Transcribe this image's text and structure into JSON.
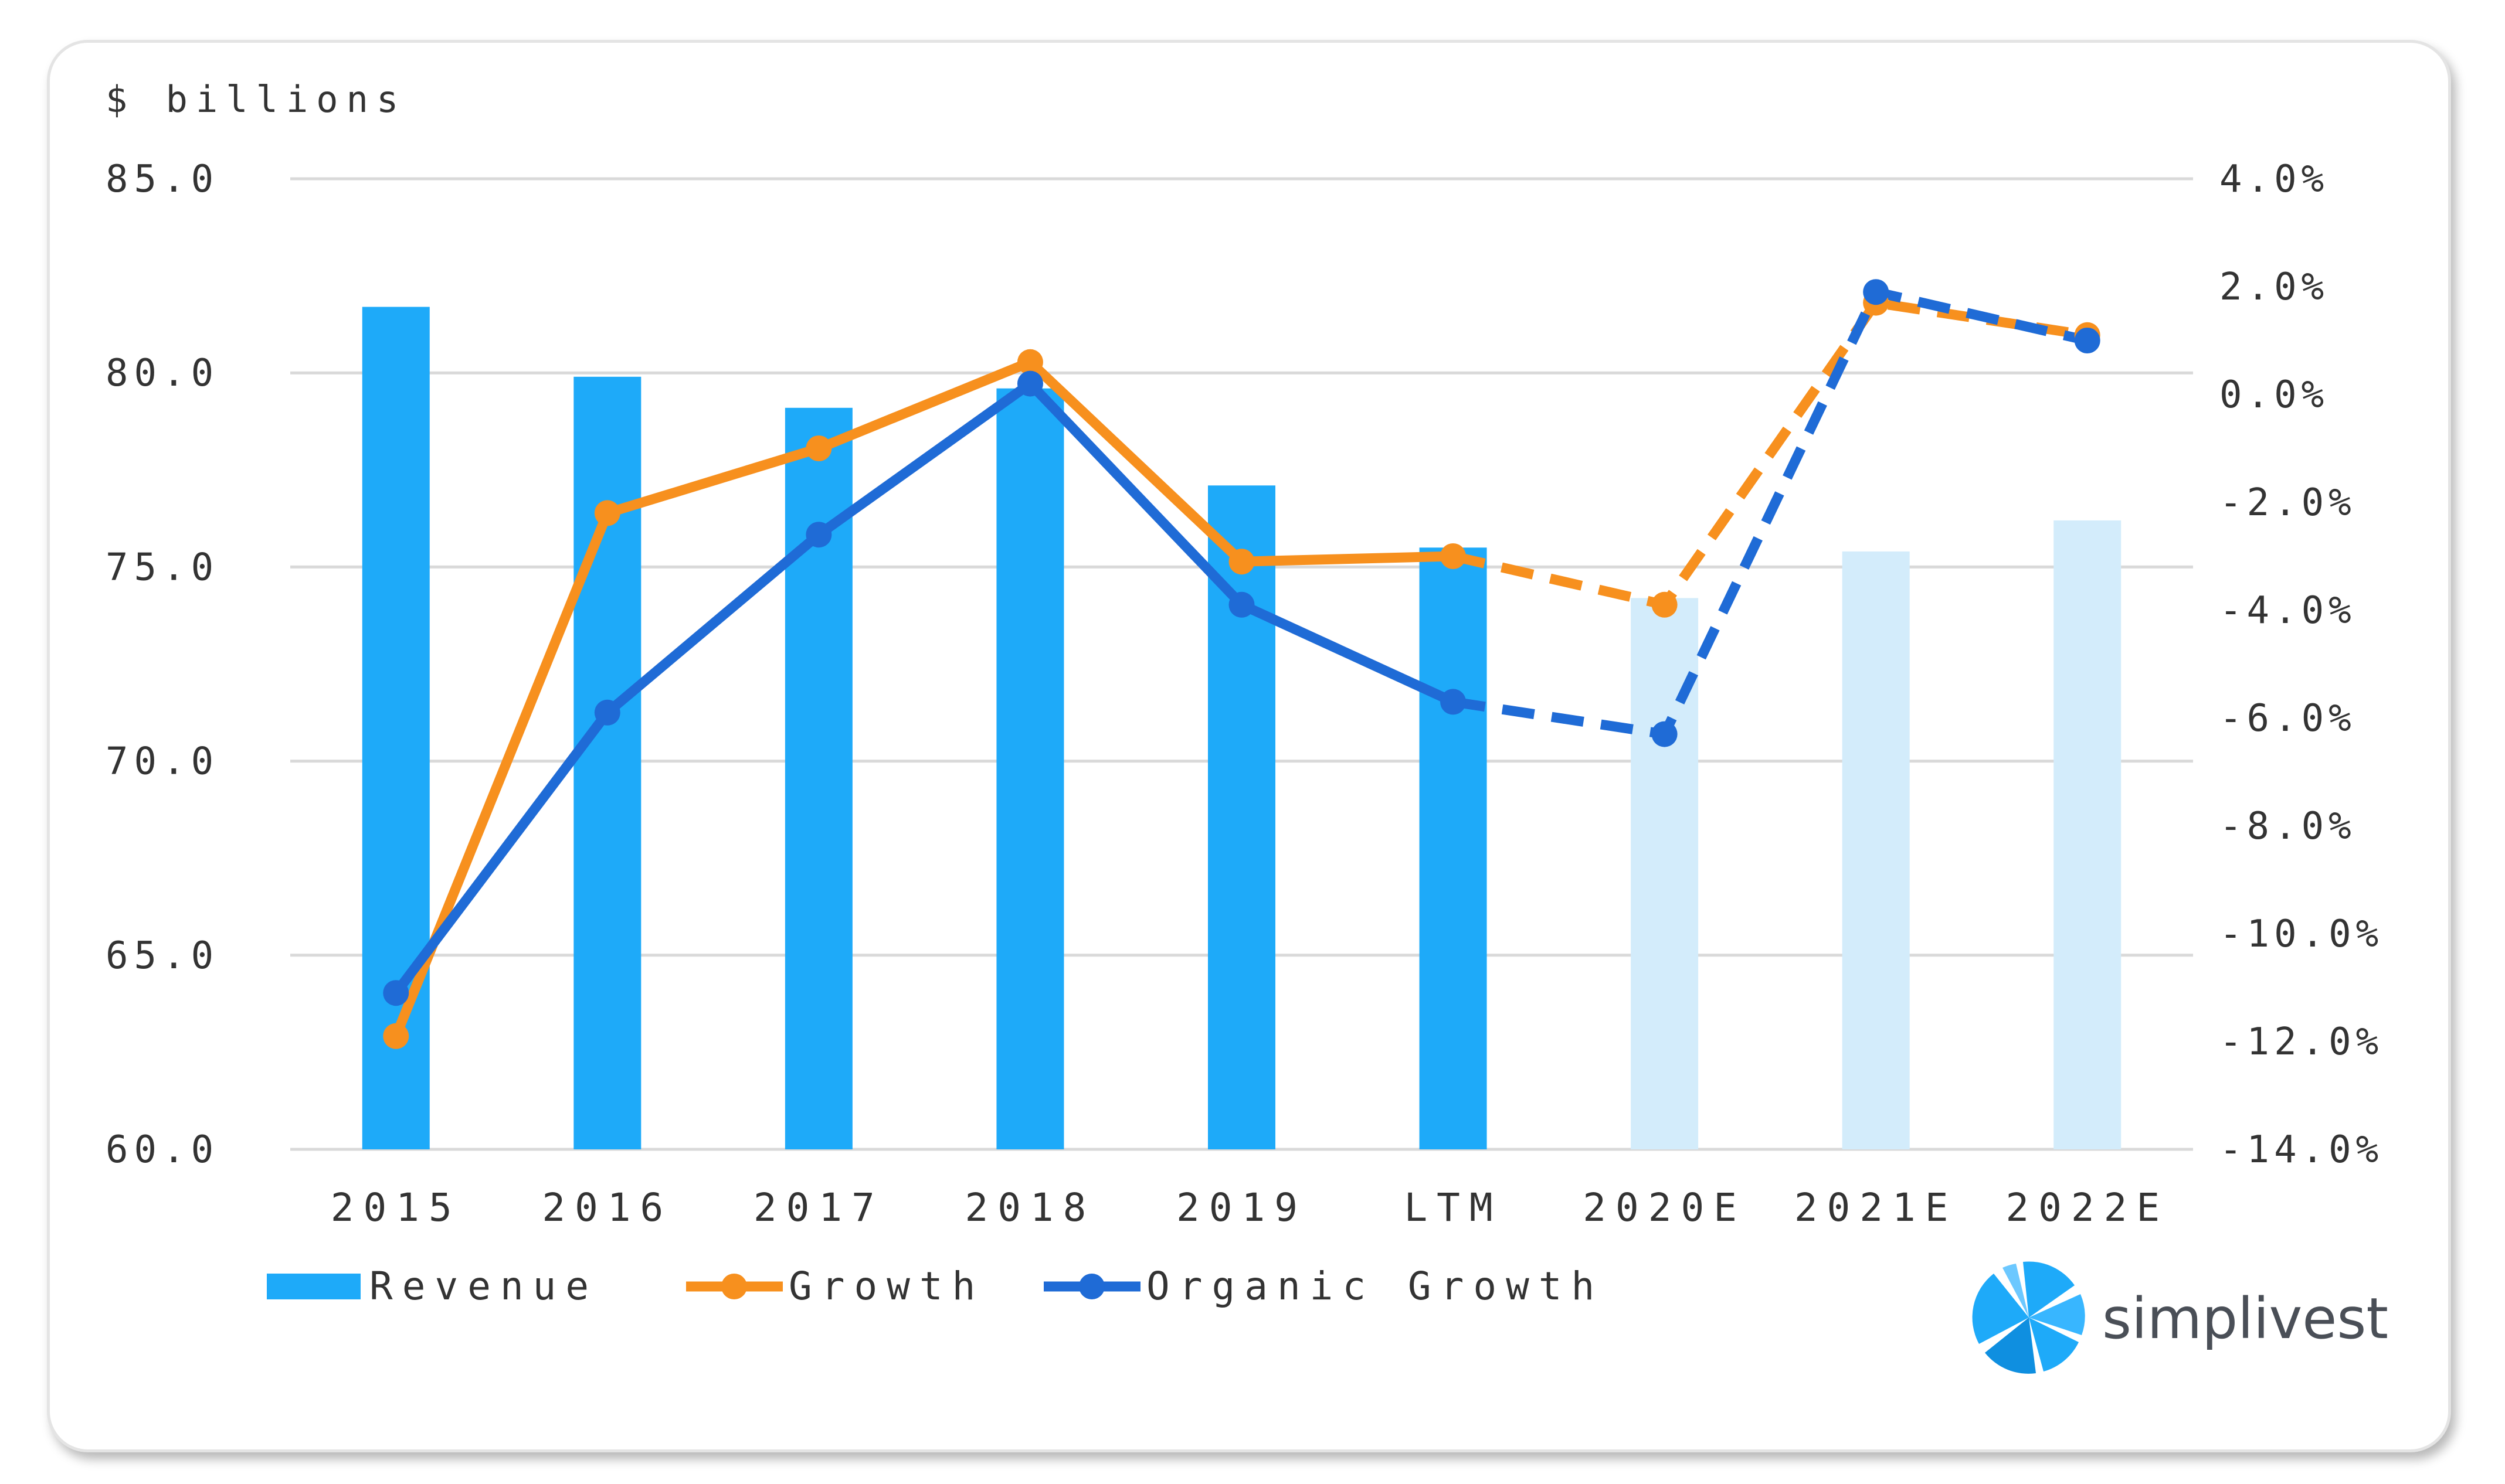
{
  "chart_data": {
    "type": "bar",
    "unit_label": "$ billions",
    "categories": [
      "2015",
      "2016",
      "2017",
      "2018",
      "2019",
      "LTM",
      "2020E",
      "2021E",
      "2022E"
    ],
    "estimate_categories": [
      "2020E",
      "2021E",
      "2022E"
    ],
    "y_left": {
      "min": 60,
      "max": 85,
      "step": 5,
      "ticks": [
        "60.0",
        "65.0",
        "70.0",
        "75.0",
        "80.0",
        "85.0"
      ]
    },
    "y_right": {
      "min": -14,
      "max": 4,
      "step": 2,
      "ticks": [
        "-14.0%",
        "-12.0%",
        "-10.0%",
        "-8.0%",
        "-6.0%",
        "-4.0%",
        "-2.0%",
        "0.0%",
        "2.0%",
        "4.0%"
      ]
    },
    "grid": true,
    "legend_position": "bottom-left",
    "series": [
      {
        "name": "Revenue",
        "kind": "bar",
        "axis": "left",
        "values": [
          81.7,
          79.9,
          79.1,
          79.6,
          77.1,
          75.5,
          74.2,
          75.4,
          76.2
        ]
      },
      {
        "name": "Growth",
        "kind": "line",
        "axis": "right",
        "dashed_from": "LTM",
        "values": [
          -11.9,
          -2.2,
          -1.0,
          0.6,
          -3.1,
          -3.0,
          -3.9,
          1.7,
          1.1
        ]
      },
      {
        "name": "Organic Growth",
        "kind": "line",
        "axis": "right",
        "dashed_from": "LTM",
        "values": [
          -11.1,
          -5.9,
          -2.6,
          0.2,
          -3.9,
          -5.7,
          -6.3,
          1.9,
          1.0
        ]
      }
    ]
  },
  "colors": {
    "revenue_actual": "#1eaaf9",
    "revenue_estimate": "#d3ecfb",
    "growth": "#f7901e",
    "organic_growth": "#1f6bd6",
    "grid": "#d9d9d9",
    "text": "#333333",
    "logo_text": "#4a4f57"
  },
  "logo": {
    "name": "simplivest",
    "icon": "simplivest-logo-icon"
  }
}
